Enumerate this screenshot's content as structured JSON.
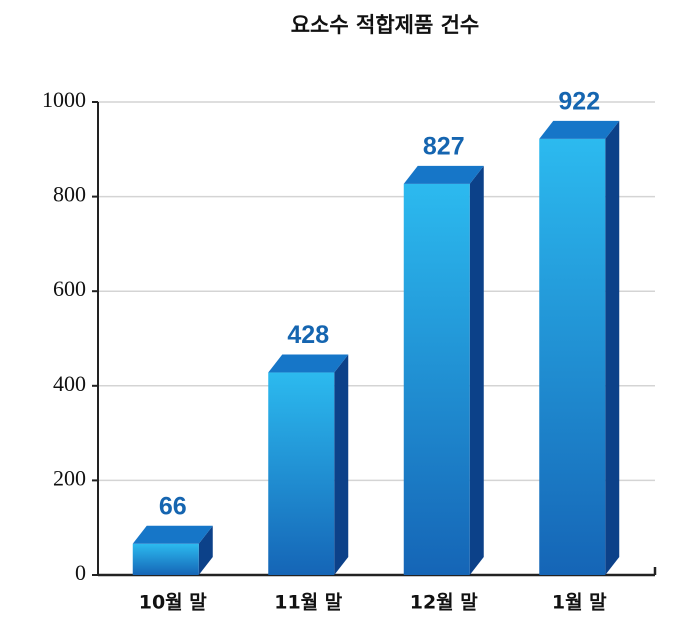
{
  "chart_data": {
    "type": "bar",
    "title": "요소수 적합제품 건수",
    "categories": [
      "10월 말",
      "11월 말",
      "12월 말",
      "1월 말"
    ],
    "values": [
      66,
      428,
      827,
      922
    ],
    "color": "#1e8fd8",
    "ylim": [
      0,
      1000
    ],
    "yticks": [
      0,
      200,
      400,
      600,
      800,
      1000
    ],
    "grid": true
  }
}
